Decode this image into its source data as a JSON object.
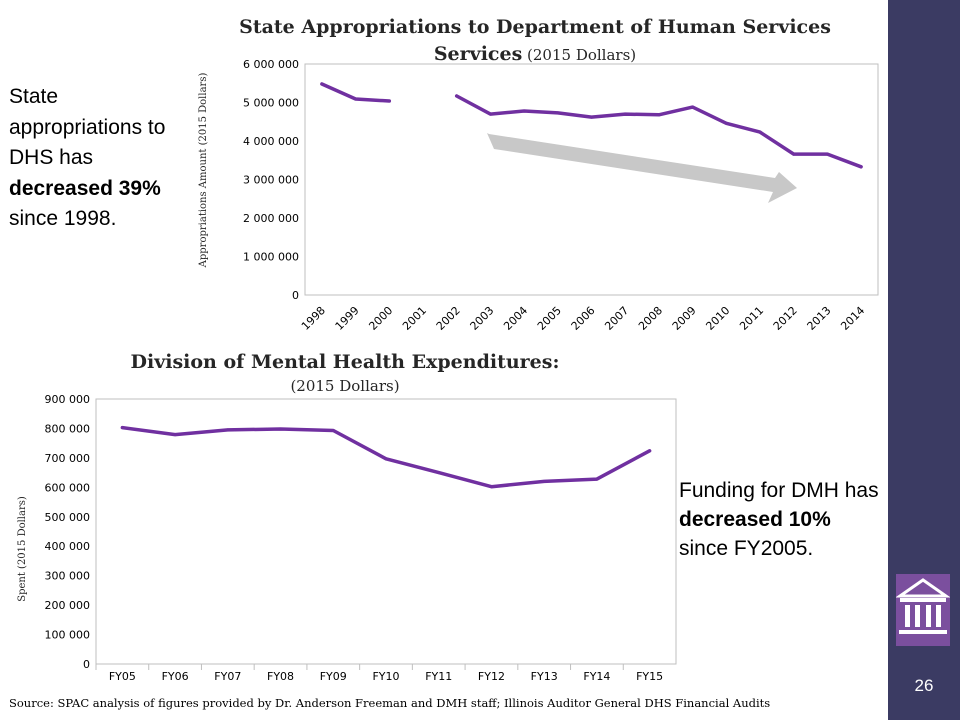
{
  "slide": {
    "page_number": "26",
    "note1": {
      "line1": "State appropriations to DHS has ",
      "bold": "decreased 39%",
      "line2": " since 1998."
    },
    "note2": {
      "line1": "Funding for DMH has ",
      "bold1": "decreased 10%",
      "line2": " since FY2005."
    },
    "source": "Source: SPAC analysis of figures provided by Dr. Anderson Freeman and DMH staff; Illinois Auditor General DHS Financial Audits",
    "colors": {
      "sidebar": "#3b3b63",
      "series": "#7030a0",
      "logo_bg": "#7b4f9e",
      "arrow": "#c8c8c8"
    }
  },
  "chart_data": [
    {
      "type": "line",
      "title_bold": "State Appropriations to Department of Human Services",
      "title_rest": " (2015 Dollars)",
      "xlabel": "",
      "ylabel": "Appropriations Amount (2015 Dollars)",
      "categories": [
        "1998",
        "1999",
        "2000",
        "2001",
        "2002",
        "2003",
        "2004",
        "2005",
        "2006",
        "2007",
        "2008",
        "2009",
        "2010",
        "2011",
        "2012",
        "2013",
        "2014"
      ],
      "series": [
        {
          "values": [
            5480000,
            5090000,
            5040000,
            null,
            5170000,
            4700000,
            4780000,
            4730000,
            4620000,
            4700000,
            4680000,
            4880000,
            4460000,
            4230000,
            3660000,
            3660000,
            3330000
          ]
        }
      ],
      "ylim": [
        0,
        6000000
      ],
      "yticks": [
        0,
        1000000,
        2000000,
        3000000,
        4000000,
        5000000,
        6000000
      ],
      "ytick_labels": [
        "0",
        "1 000 000",
        "2 000 000",
        "3 000 000",
        "4 000 000",
        "5 000 000",
        "6 000 000"
      ],
      "grid": false,
      "annotation": "downward-trend-arrow"
    },
    {
      "type": "line",
      "title_bold": "Division of Mental Health Expenditures:",
      "subtitle": "(2015 Dollars)",
      "xlabel": "",
      "ylabel": "Spent (2015 Dollars)",
      "categories": [
        "FY05",
        "FY06",
        "FY07",
        "FY08",
        "FY09",
        "FY10",
        "FY11",
        "FY12",
        "FY13",
        "FY14",
        "FY15"
      ],
      "series": [
        {
          "values": [
            803000,
            779000,
            795000,
            798000,
            793000,
            697000,
            650000,
            602000,
            620000,
            628000,
            724000
          ]
        }
      ],
      "ylim": [
        0,
        900000
      ],
      "yticks": [
        0,
        100000,
        200000,
        300000,
        400000,
        500000,
        600000,
        700000,
        800000,
        900000
      ],
      "ytick_labels": [
        "0",
        "100 000",
        "200 000",
        "300 000",
        "400 000",
        "500 000",
        "600 000",
        "700 000",
        "800 000",
        "900 000"
      ],
      "grid": false
    }
  ]
}
